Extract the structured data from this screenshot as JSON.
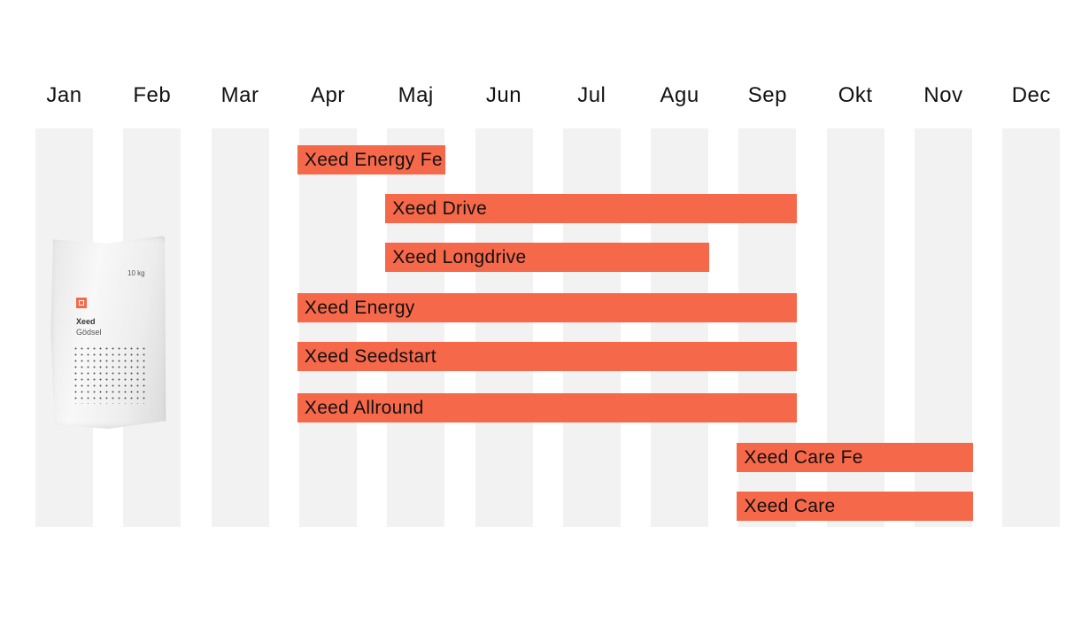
{
  "chart_data": {
    "type": "gantt",
    "months": [
      "Jan",
      "Feb",
      "Mar",
      "Apr",
      "Maj",
      "Jun",
      "Jul",
      "Agu",
      "Sep",
      "Okt",
      "Nov",
      "Dec"
    ],
    "products": [
      {
        "name": "Xeed Energy Fe",
        "start_month": "Apr",
        "end_month": "Maj"
      },
      {
        "name": "Xeed Drive",
        "start_month": "Maj",
        "end_month": "Sep"
      },
      {
        "name": "Xeed Longdrive",
        "start_month": "Maj",
        "end_month": "Agu"
      },
      {
        "name": "Xeed Energy",
        "start_month": "Apr",
        "end_month": "Sep"
      },
      {
        "name": "Xeed Seedstart",
        "start_month": "Apr",
        "end_month": "Sep"
      },
      {
        "name": "Xeed Allround",
        "start_month": "Apr",
        "end_month": "Sep"
      },
      {
        "name": "Xeed Care Fe",
        "start_month": "Sep",
        "end_month": "Nov"
      },
      {
        "name": "Xeed Care",
        "start_month": "Sep",
        "end_month": "Nov"
      }
    ],
    "bar_color": "#f6684a",
    "column_color": "#f2f2f2"
  },
  "product_image": {
    "weight": "10 kg",
    "brand": "Xeed",
    "subtitle": "Gödsel",
    "icon": "bag-logo-icon"
  }
}
